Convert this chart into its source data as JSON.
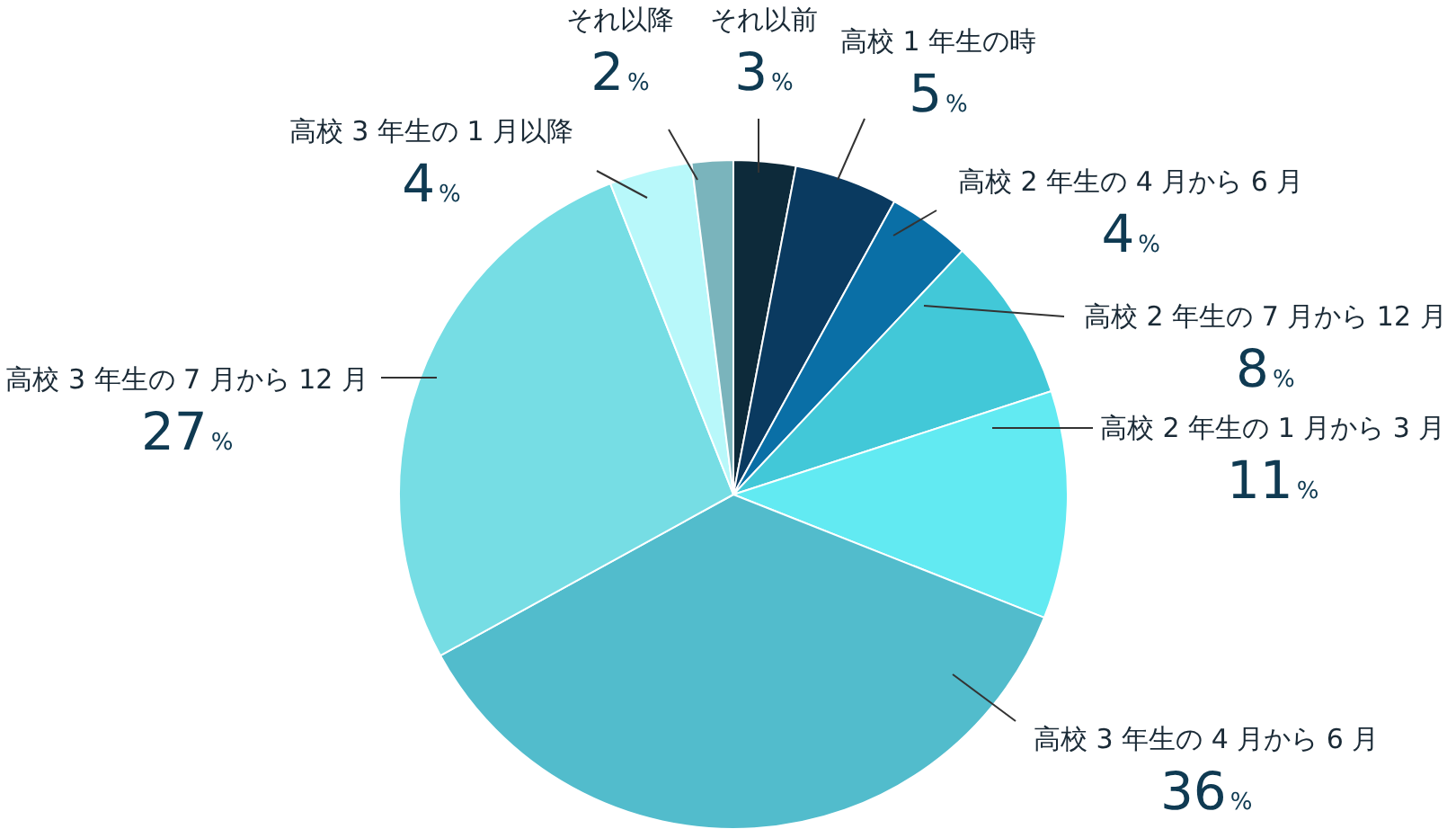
{
  "chart_data": {
    "type": "pie",
    "categories": [
      "それ以前",
      "高校 1 年生の時",
      "高校 2 年生の 4 月から 6 月",
      "高校 2 年生の 7 月から 12 月",
      "高校 2 年生の 1 月から 3 月",
      "高校 3 年生の 4 月から 6 月",
      "高校 3 年生の 7 月から 12 月",
      "高校 3 年生の 1 月以降",
      "それ以降"
    ],
    "values": [
      3,
      5,
      4,
      8,
      11,
      36,
      27,
      4,
      2
    ],
    "colors": [
      "#0d2a3a",
      "#0a3a60",
      "#0a6fa6",
      "#42c8d8",
      "#62eaf2",
      "#52bccc",
      "#76dde4",
      "#b8f8fa",
      "#7ab4bc"
    ],
    "value_labels": [
      "3%",
      "5%",
      "4%",
      "8%",
      "11%",
      "36%",
      "27%",
      "4%",
      "2%"
    ]
  }
}
